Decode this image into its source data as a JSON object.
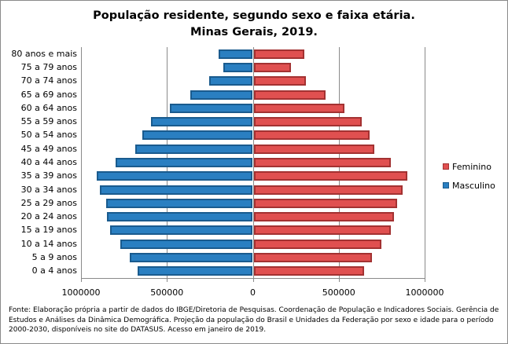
{
  "chart_data": {
    "type": "bar",
    "orientation": "horizontal",
    "subtype": "population-pyramid",
    "title": "População residente, segundo sexo e faixa etária.",
    "subtitle": "Minas Gerais, 2019.",
    "xlabel": "",
    "ylabel": "",
    "xlim": [
      -1000000,
      1000000
    ],
    "xticks": [
      -1000000,
      -500000,
      0,
      500000,
      1000000
    ],
    "xtick_labels": [
      "1000000",
      "500000",
      "0",
      "500000",
      "1000000"
    ],
    "grid": true,
    "legend_position": "right",
    "categories": [
      "80 anos e mais",
      "75 a 79 anos",
      "70 a 74 anos",
      "65 a 69 anos",
      "60 a 64 anos",
      "55 a 59 anos",
      "50 a 54 anos",
      "45 a 49 anos",
      "40 a 44 anos",
      "35 a 39 anos",
      "30 a 34 anos",
      "25 a 29 anos",
      "20 a 24 anos",
      "15 a 19 anos",
      "10 a 14 anos",
      "5 a 9 anos",
      "0 a 4 anos"
    ],
    "series": [
      {
        "name": "Feminino",
        "color": "#e05050",
        "values": [
          294000,
          216000,
          303000,
          417000,
          528000,
          628000,
          674000,
          702000,
          798000,
          894000,
          867000,
          835000,
          817000,
          798000,
          743000,
          688000,
          642000
        ]
      },
      {
        "name": "Masculino",
        "color": "#2a7fc1",
        "values": [
          197000,
          170000,
          252000,
          362000,
          482000,
          592000,
          642000,
          683000,
          798000,
          908000,
          890000,
          853000,
          849000,
          830000,
          771000,
          716000,
          670000
        ]
      }
    ]
  },
  "legend": {
    "items": [
      {
        "label": "Feminino",
        "color": "#e05050",
        "border": "#a33232"
      },
      {
        "label": "Masculino",
        "color": "#2a7fc1",
        "border": "#1a5b8e"
      }
    ]
  },
  "source": "Fonte:  Elaboração própria a partir de dados do  IBGE/Diretoria de Pesquisas. Coordenação de População e Indicadores Sociais. Gerência de Estudos e Análises da Dinâmica Demográfica. Projeção da população do Brasil e Unidades da Federação por sexo e idade para o período 2000-2030, disponíveis no site do DATASUS. Acesso em  janeiro de 2019."
}
